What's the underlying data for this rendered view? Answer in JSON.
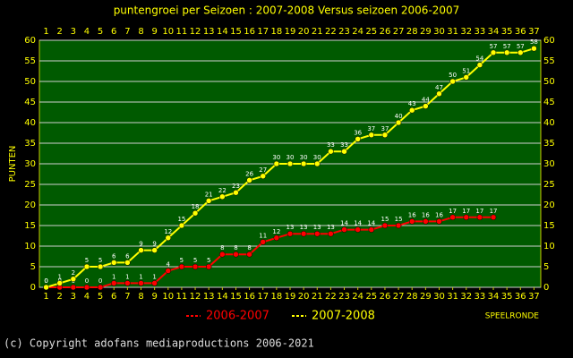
{
  "chart_data": {
    "type": "line",
    "title": "puntengroei per Seizoen : 2007-2008 Versus seizoen 2006-2007",
    "y_label": "PUNTEN",
    "x_label": "SPEELRONDE",
    "footer": "(c) Copyright adofans mediaproductions 2006-2021",
    "x": [
      1,
      2,
      3,
      4,
      5,
      6,
      7,
      8,
      9,
      10,
      11,
      12,
      13,
      14,
      15,
      16,
      17,
      18,
      19,
      20,
      21,
      22,
      23,
      24,
      25,
      26,
      27,
      28,
      29,
      30,
      31,
      32,
      33,
      34,
      35,
      36,
      37
    ],
    "xlim": [
      0.5,
      37.5
    ],
    "xticks": [
      1,
      2,
      3,
      4,
      5,
      6,
      7,
      8,
      9,
      10,
      11,
      12,
      13,
      14,
      15,
      16,
      17,
      18,
      19,
      20,
      21,
      22,
      23,
      24,
      25,
      26,
      27,
      28,
      29,
      30,
      31,
      32,
      33,
      34,
      35,
      36,
      37
    ],
    "ylim": [
      0,
      60
    ],
    "yticks": [
      0,
      5,
      10,
      15,
      20,
      25,
      30,
      35,
      40,
      45,
      50,
      55,
      60
    ],
    "grid": true,
    "legend": "bottom",
    "series": [
      {
        "name": "2006-2007",
        "color": "#ff0000",
        "values": [
          0,
          0,
          0,
          0,
          0,
          1,
          1,
          1,
          1,
          4,
          5,
          5,
          5,
          8,
          8,
          8,
          11,
          12,
          13,
          13,
          13,
          13,
          14,
          14,
          14,
          15,
          15,
          16,
          16,
          16,
          17,
          17,
          17,
          17,
          null,
          null,
          null
        ]
      },
      {
        "name": "2007-2008",
        "color": "#ffff00",
        "values": [
          0,
          1,
          2,
          5,
          5,
          6,
          6,
          9,
          9,
          12,
          15,
          18,
          21,
          22,
          23,
          26,
          27,
          30,
          30,
          30,
          30,
          33,
          33,
          36,
          37,
          37,
          40,
          43,
          44,
          47,
          50,
          51,
          54,
          57,
          57,
          57,
          58
        ]
      }
    ]
  }
}
